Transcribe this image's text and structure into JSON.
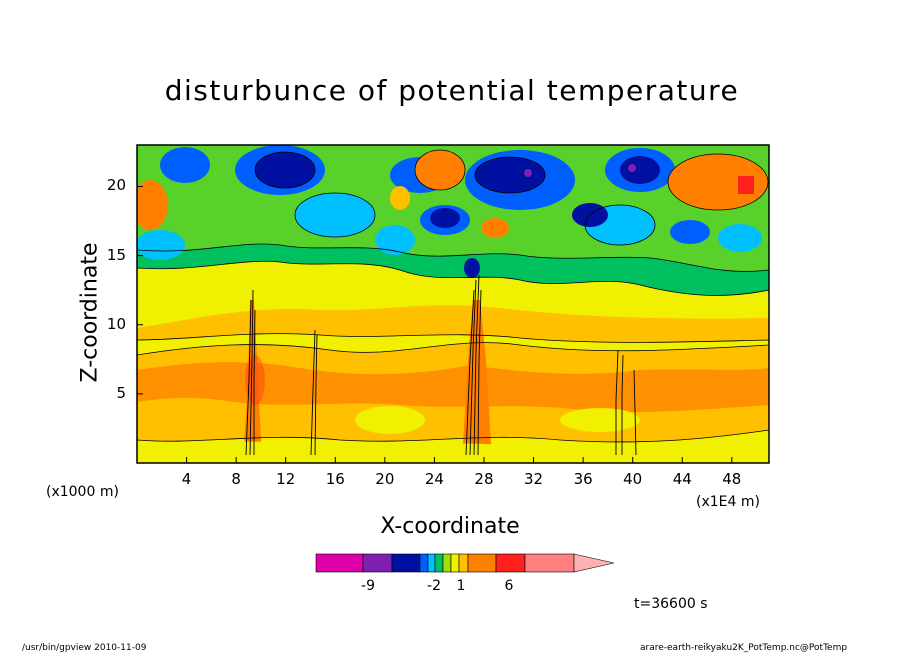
{
  "chart_data": {
    "type": "heatmap",
    "title": "disturbunce of potential temperature",
    "xlabel": "X-coordinate",
    "ylabel": "Z-coordinate",
    "x_unit": "(x1000 m)",
    "x_unit_secondary": "(x1E4 m)",
    "xlim": [
      0,
      51
    ],
    "ylim": [
      0,
      23
    ],
    "x_ticks": [
      "4",
      "8",
      "12",
      "16",
      "20",
      "24",
      "28",
      "32",
      "36",
      "40",
      "44",
      "48"
    ],
    "x_tick_values": [
      4,
      8,
      12,
      16,
      20,
      24,
      28,
      32,
      36,
      40,
      44,
      48
    ],
    "y_ticks": [
      "5",
      "10",
      "15",
      "20"
    ],
    "y_tick_values": [
      5,
      10,
      15,
      20
    ],
    "colorbar": {
      "colors": [
        "#e000a8",
        "#8020b0",
        "#0010a0",
        "#0060ff",
        "#00c0ff",
        "#00c060",
        "#a0e000",
        "#f0f000",
        "#ffc000",
        "#ff8000",
        "#ff2020",
        "#ff8080",
        "#ffb0b0"
      ],
      "labels": [
        "-9",
        "-2",
        "1",
        "6"
      ]
    },
    "time_label": "t=36600 s",
    "convective_columns_x": [
      9,
      14,
      27.5,
      38.5,
      40
    ]
  },
  "footer": {
    "left": "/usr/bin/gpview   2010-11-09",
    "right": "arare-earth-reikyaku2K_PotTemp.nc@PotTemp"
  }
}
